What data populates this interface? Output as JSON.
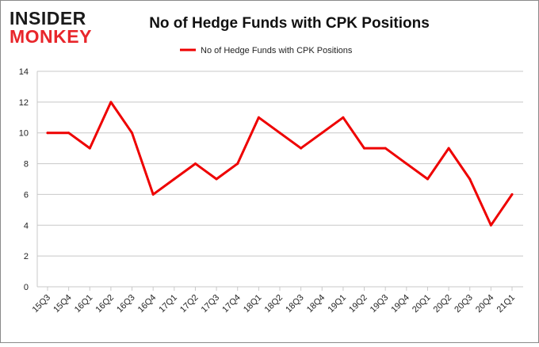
{
  "logo": {
    "line1": "INSIDER",
    "line2": "MONKEY",
    "line1_color": "#1a1a1a",
    "line2_color": "#e8262b"
  },
  "colors": {
    "series": "#ee0000",
    "grid": "#c8c8c8",
    "axis_text": "#222222",
    "border": "#8a8a8a"
  },
  "chart_data": {
    "type": "line",
    "title": "No of Hedge Funds with CPK Positions",
    "xlabel": "",
    "ylabel": "",
    "ylim": [
      0,
      14
    ],
    "yticks": [
      0,
      2,
      4,
      6,
      8,
      10,
      12,
      14
    ],
    "grid": true,
    "legend_position": "top-center",
    "categories": [
      "15Q3",
      "15Q4",
      "16Q1",
      "16Q2",
      "16Q3",
      "16Q4",
      "17Q1",
      "17Q2",
      "17Q3",
      "17Q4",
      "18Q1",
      "18Q2",
      "18Q3",
      "18Q4",
      "19Q1",
      "19Q2",
      "19Q3",
      "19Q4",
      "20Q1",
      "20Q2",
      "20Q3",
      "20Q4",
      "21Q1"
    ],
    "series": [
      {
        "name": "No of Hedge Funds with CPK Positions",
        "values": [
          10,
          10,
          9,
          12,
          10,
          6,
          7,
          8,
          7,
          8,
          11,
          10,
          9,
          10,
          11,
          9,
          9,
          8,
          7,
          9,
          7,
          4,
          6
        ]
      }
    ]
  }
}
